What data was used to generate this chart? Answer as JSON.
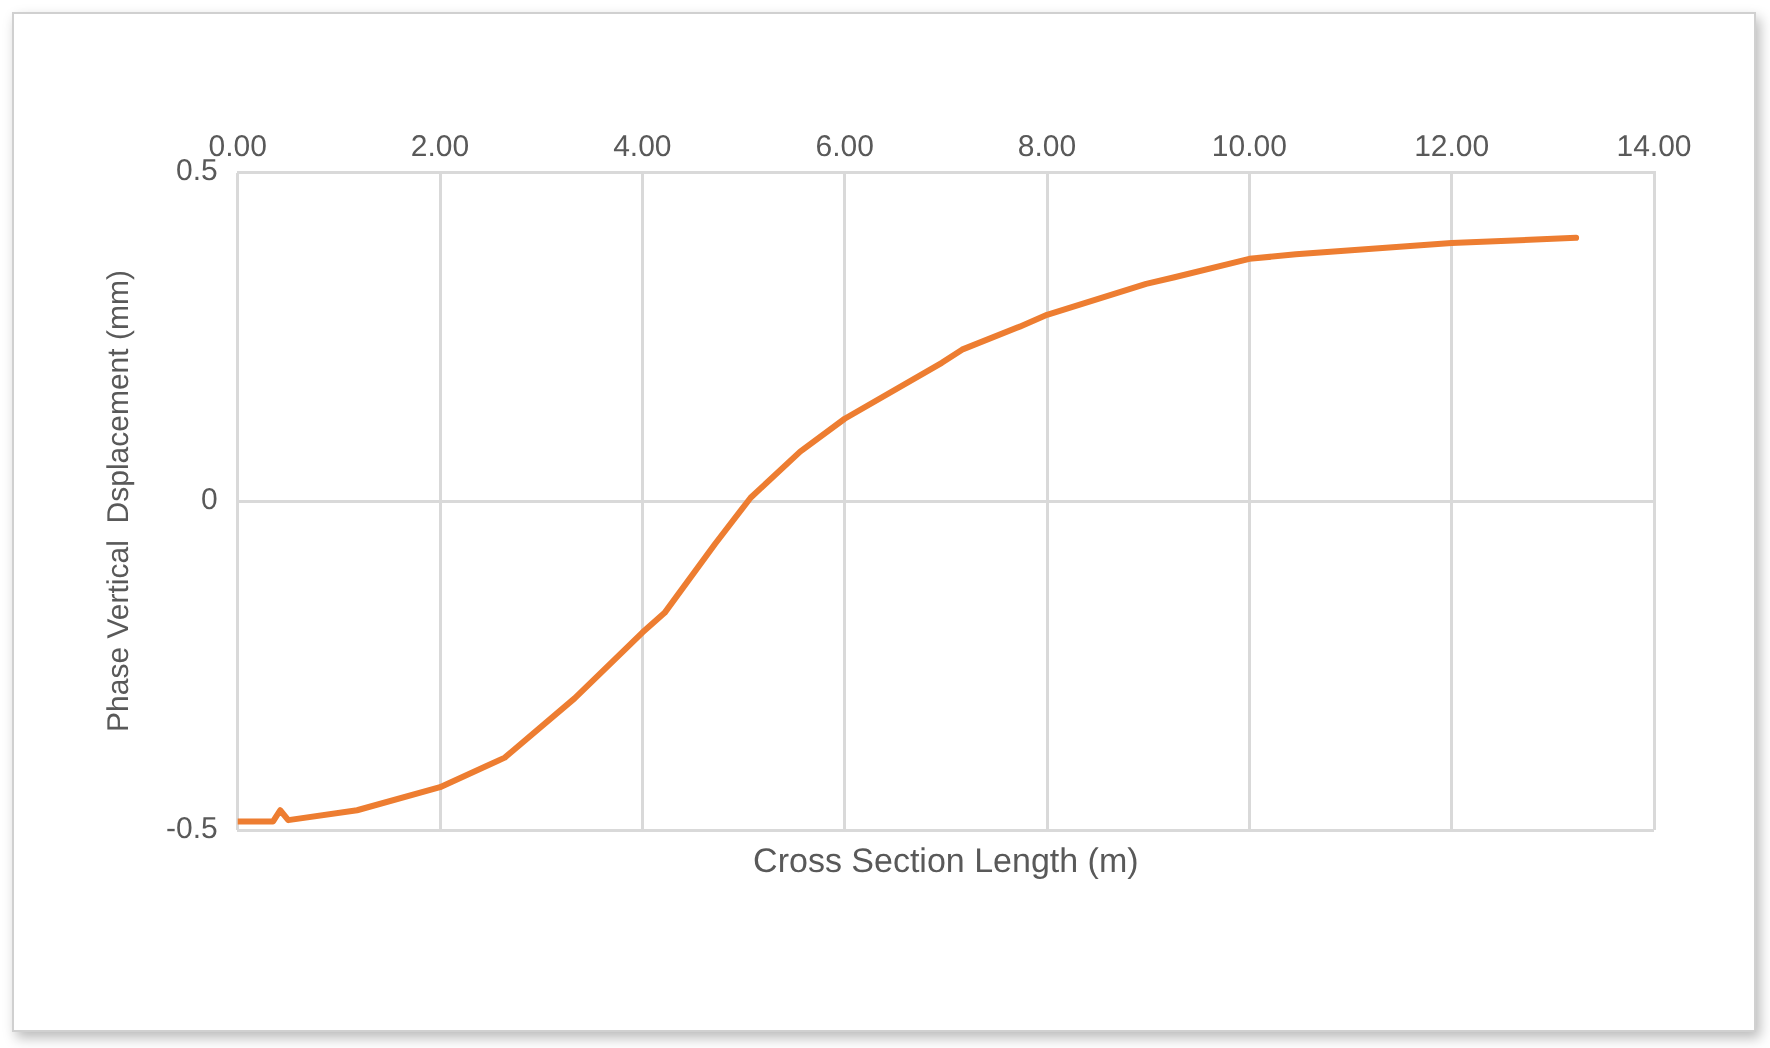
{
  "chart_data": {
    "type": "line",
    "xlabel": "Cross Section Length (m)",
    "ylabel": "Phase Vertical  Dsplacement (mm)",
    "series": [
      {
        "color": "#ed7d31",
        "x": [
          0,
          0.35,
          0.42,
          0.5,
          1.18,
          2.0,
          2.64,
          3.33,
          4.0,
          4.22,
          4.72,
          5.07,
          5.56,
          6.0,
          6.96,
          7.16,
          7.73,
          8.0,
          8.98,
          9.26,
          10.0,
          10.46,
          12.0,
          13.23
        ],
        "values": [
          -0.487,
          -0.487,
          -0.47,
          -0.485,
          -0.47,
          -0.435,
          -0.39,
          -0.3,
          -0.2,
          -0.17,
          -0.065,
          0.005,
          0.075,
          0.125,
          0.21,
          0.23,
          0.265,
          0.283,
          0.33,
          0.34,
          0.368,
          0.375,
          0.392,
          0.4
        ]
      }
    ],
    "xlim": [
      0,
      14
    ],
    "xticks": [
      {
        "value": 0,
        "label": "0.00"
      },
      {
        "value": 2,
        "label": "2.00"
      },
      {
        "value": 4,
        "label": "4.00"
      },
      {
        "value": 6,
        "label": "6.00"
      },
      {
        "value": 8,
        "label": "8.00"
      },
      {
        "value": 10,
        "label": "10.00"
      },
      {
        "value": 12,
        "label": "12.00"
      },
      {
        "value": 14,
        "label": "14.00"
      }
    ],
    "ylim": [
      -0.5,
      0.5
    ],
    "yticks": [
      -0.5,
      0,
      0.5
    ],
    "grid": true,
    "marker": "none",
    "line_style": "solid"
  }
}
